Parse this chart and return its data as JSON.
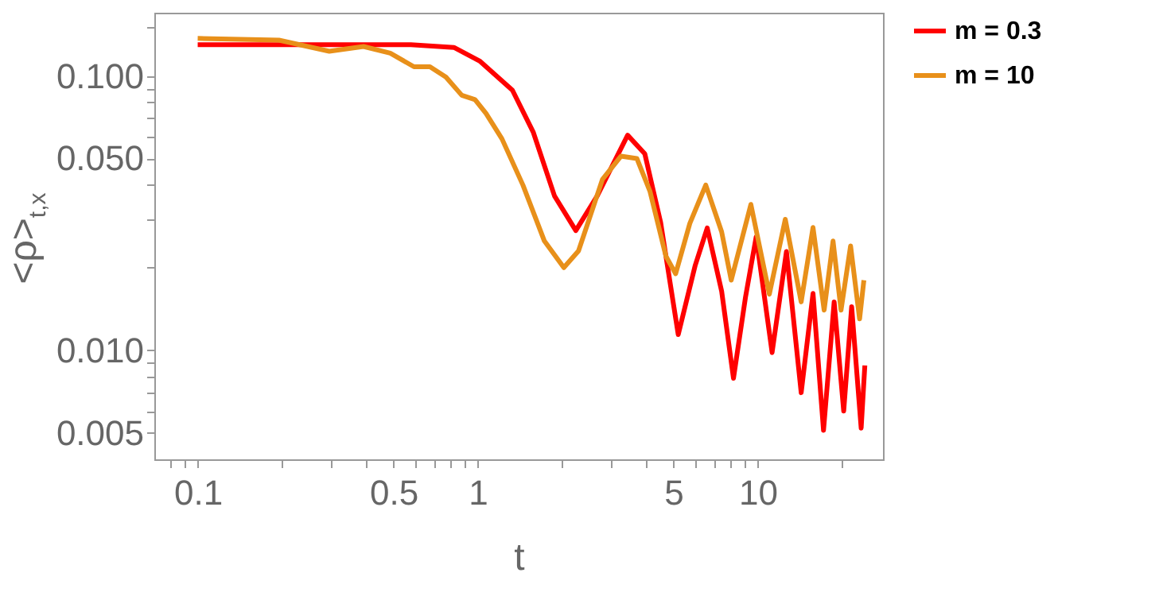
{
  "chart_data": {
    "type": "line",
    "xlabel": "t",
    "ylabel": "<ρ>$_{t,x}$",
    "log": "xy",
    "grid": false,
    "legend": "right",
    "marker": "none",
    "line_style": "solid",
    "xlim": [
      0.07,
      28
    ],
    "ylim": [
      0.004,
      0.17
    ],
    "xticks": [
      {
        "value": 0.08,
        "label": null
      },
      {
        "value": 0.09,
        "label": null
      },
      0.1,
      {
        "value": 0.2,
        "label": null
      },
      {
        "value": 0.3,
        "label": null
      },
      {
        "value": 0.4,
        "label": null
      },
      0.5,
      {
        "value": 0.6,
        "label": null
      },
      {
        "value": 0.7,
        "label": null
      },
      {
        "value": 0.8,
        "label": null
      },
      {
        "value": 0.9,
        "label": null
      },
      1,
      {
        "value": 2,
        "label": null
      },
      {
        "value": 3,
        "label": null
      },
      {
        "value": 4,
        "label": null
      },
      5,
      {
        "value": 6,
        "label": null
      },
      {
        "value": 7,
        "label": null
      },
      {
        "value": 8,
        "label": null
      },
      {
        "value": 9,
        "label": null
      },
      10,
      {
        "value": 20,
        "label": null
      }
    ],
    "yticks": [
      {
        "value": 0.005,
        "label": "0.005"
      },
      {
        "value": 0.006,
        "label": null
      },
      {
        "value": 0.007,
        "label": null
      },
      {
        "value": 0.008,
        "label": null
      },
      {
        "value": 0.009,
        "label": null
      },
      {
        "value": 0.01,
        "label": "0.010"
      },
      {
        "value": 0.02,
        "label": null
      },
      {
        "value": 0.03,
        "label": null
      },
      {
        "value": 0.04,
        "label": null
      },
      {
        "value": 0.05,
        "label": "0.050"
      },
      {
        "value": 0.06,
        "label": null
      },
      {
        "value": 0.07,
        "label": null
      },
      {
        "value": 0.08,
        "label": null
      },
      {
        "value": 0.09,
        "label": null
      },
      {
        "value": 0.1,
        "label": "0.100"
      },
      {
        "value": 0.15,
        "label": null
      }
    ],
    "series": [
      {
        "name": "m = 0.3",
        "color": "#ff0000",
        "x": [
          0.1,
          0.577,
          0.822,
          1.02,
          1.33,
          1.58,
          1.88,
          2.24,
          2.67,
          3.43,
          3.95,
          4.5,
          5.2,
          5.98,
          6.6,
          7.43,
          8.19,
          9.04,
          9.87,
          11.25,
          12.66,
          14.29,
          15.75,
          17.17,
          18.74,
          20.27,
          21.64,
          23.4,
          24.12
        ],
        "values": [
          0.13,
          0.13,
          0.127,
          0.113,
          0.0887,
          0.0622,
          0.0365,
          0.0273,
          0.0365,
          0.0608,
          0.052,
          0.0292,
          0.0114,
          0.0204,
          0.0279,
          0.0164,
          0.0079,
          0.0156,
          0.0259,
          0.0098,
          0.0229,
          0.007,
          0.0161,
          0.0051,
          0.015,
          0.006,
          0.0144,
          0.0052,
          0.0088
        ]
      },
      {
        "name": "m = 10",
        "color": "#e8901a",
        "x": [
          0.1,
          0.195,
          0.295,
          0.391,
          0.487,
          0.592,
          0.675,
          0.77,
          0.877,
          0.978,
          1.07,
          1.22,
          1.45,
          1.73,
          2.03,
          2.29,
          2.79,
          3.25,
          3.7,
          4.12,
          4.7,
          5.09,
          5.72,
          6.52,
          7.43,
          8.04,
          9.45,
          11.0,
          12.54,
          14.29,
          15.75,
          17.26,
          18.57,
          19.83,
          21.45,
          23.1,
          23.93
        ],
        "values": [
          0.137,
          0.135,
          0.123,
          0.128,
          0.121,
          0.108,
          0.108,
          0.099,
          0.085,
          0.082,
          0.073,
          0.059,
          0.04,
          0.025,
          0.02,
          0.023,
          0.042,
          0.051,
          0.05,
          0.038,
          0.022,
          0.019,
          0.029,
          0.04,
          0.027,
          0.018,
          0.034,
          0.016,
          0.03,
          0.015,
          0.028,
          0.014,
          0.025,
          0.014,
          0.024,
          0.013,
          0.018
        ]
      }
    ]
  }
}
